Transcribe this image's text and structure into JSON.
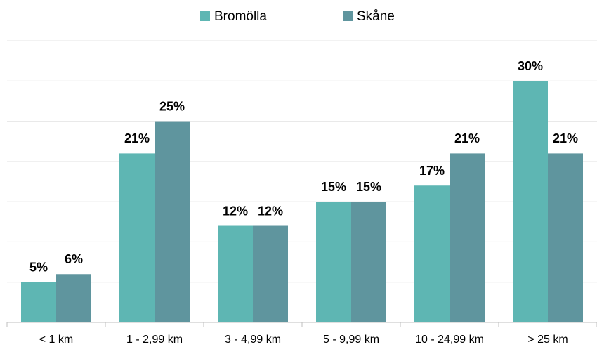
{
  "chart_data": {
    "type": "bar",
    "categories": [
      "< 1 km",
      "1 - 2,99 km",
      "3 - 4,99 km",
      "5 - 9,99 km",
      "10 - 24,99 km",
      "> 25 km"
    ],
    "series": [
      {
        "name": "Bromölla",
        "color": "#5eb6b3",
        "values": [
          5,
          21,
          12,
          15,
          17,
          30
        ],
        "value_labels": [
          "5%",
          "21%",
          "12%",
          "15%",
          "17%",
          "30%"
        ]
      },
      {
        "name": "Skåne",
        "color": "#5f959e",
        "values": [
          6,
          25,
          12,
          15,
          21,
          21
        ],
        "value_labels": [
          "6%",
          "25%",
          "12%",
          "15%",
          "21%",
          "21%"
        ]
      }
    ],
    "ylim": [
      0,
      35
    ],
    "yticks": [
      0,
      5,
      10,
      15,
      20,
      25,
      30,
      35
    ],
    "grid": true,
    "legend": "top"
  }
}
